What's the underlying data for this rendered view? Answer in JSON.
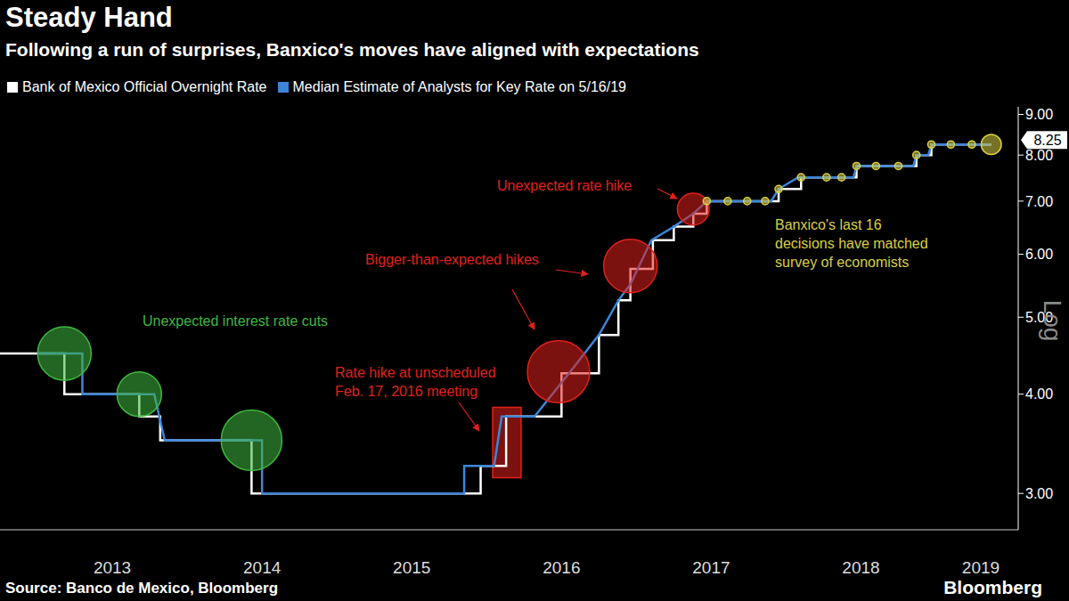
{
  "chart_data": {
    "type": "line",
    "title": "Steady Hand",
    "subtitle": "Following a run of surprises, Banxico's moves have aligned with expectations",
    "source": "Source: Banco de Mexico, Bloomberg",
    "brand": "Bloomberg",
    "ylabel": "Log",
    "log": "y",
    "grid": false,
    "xlim": [
      2012.75,
      2019.55
    ],
    "xticks": [
      {
        "value": 2013.5,
        "label": "2013"
      },
      {
        "value": 2014.5,
        "label": "2014"
      },
      {
        "value": 2015.5,
        "label": "2015"
      },
      {
        "value": 2016.5,
        "label": "2016"
      },
      {
        "value": 2017.5,
        "label": "2017"
      },
      {
        "value": 2018.5,
        "label": "2018"
      },
      {
        "value": 2019.3,
        "label": "2019"
      }
    ],
    "ylim": [
      2.7,
      9.2
    ],
    "yticks": [
      {
        "value": 3,
        "label": "3.00"
      },
      {
        "value": 4,
        "label": "4.00"
      },
      {
        "value": 5,
        "label": "5.00"
      },
      {
        "value": 6,
        "label": "6.00"
      },
      {
        "value": 7,
        "label": "7.00"
      },
      {
        "value": 8,
        "label": "8.00"
      },
      {
        "value": 9,
        "label": "9.00"
      }
    ],
    "series": [
      {
        "name": "Bank of Mexico Official Overnight Rate",
        "color": "#ffffff",
        "line_style": "step",
        "x": [
          2012.75,
          2013.18,
          2013.68,
          2013.82,
          2014.43,
          2015.96,
          2016.13,
          2016.5,
          2016.75,
          2016.88,
          2016.96,
          2017.11,
          2017.25,
          2017.38,
          2017.47,
          2017.95,
          2018.1,
          2018.47,
          2018.87,
          2018.97,
          2019.37
        ],
        "values": [
          4.5,
          4.0,
          3.75,
          3.5,
          3.0,
          3.25,
          3.75,
          4.25,
          4.75,
          5.25,
          5.75,
          6.25,
          6.5,
          6.75,
          7.0,
          7.25,
          7.5,
          7.75,
          8.0,
          8.25,
          8.25
        ]
      },
      {
        "name": "Median Estimate of Analysts for Key Rate on 5/16/19",
        "color": "#3d85d8",
        "line_style": "solid",
        "x": [
          2013.0,
          2013.3,
          2013.3,
          2013.78,
          2013.85,
          2014.5,
          2014.5,
          2015.85,
          2015.85,
          2016.05,
          2016.1,
          2016.32,
          2016.55,
          2016.75,
          2016.88,
          2016.96,
          2017.1,
          2017.25,
          2017.38,
          2017.47,
          2017.9,
          2017.95,
          2018.08,
          2018.45,
          2018.47,
          2018.85,
          2018.87,
          2018.95,
          2018.97,
          2019.37
        ],
        "values": [
          4.5,
          4.5,
          4.0,
          4.0,
          3.5,
          3.5,
          3.0,
          3.0,
          3.25,
          3.25,
          3.75,
          3.75,
          4.25,
          4.75,
          5.25,
          5.5,
          6.25,
          6.5,
          6.75,
          7.0,
          7.0,
          7.25,
          7.5,
          7.5,
          7.75,
          7.75,
          8.0,
          8.0,
          8.25,
          8.25
        ]
      }
    ],
    "annotations": [
      {
        "text": [
          "Unexpected interest rate cuts"
        ],
        "color": "#3fb83f",
        "marker": "circle",
        "x": [
          2013.18,
          2013.68,
          2014.43
        ],
        "values": [
          4.5,
          4.0,
          3.5
        ],
        "size": [
          71,
          49,
          91
        ]
      },
      {
        "text": [
          "Rate hike at unscheduled",
          "Feb. 17, 2016 meeting"
        ],
        "color": "#e0201b",
        "marker": "rect",
        "x": [
          2016.04,
          2016.23
        ],
        "values": [
          3.14,
          3.85
        ]
      },
      {
        "text": [
          "Bigger-than-expected hikes"
        ],
        "color": "#e0201b",
        "marker": "circle",
        "x": [
          2016.48,
          2016.96
        ],
        "values": [
          4.27,
          5.8
        ],
        "size": [
          96,
          71
        ]
      },
      {
        "text": [
          "Unexpected rate hike"
        ],
        "color": "#e0201b",
        "marker": "circle",
        "x": [
          2017.38
        ],
        "values": [
          6.84
        ],
        "size": [
          25
        ]
      },
      {
        "text": [
          "Banxico's last 16",
          "decisions have matched",
          "survey of economists"
        ],
        "color": "#d9cf45",
        "marker": "circle",
        "x": [
          2017.47,
          2017.61,
          2017.74,
          2017.86,
          2017.95,
          2018.1,
          2018.27,
          2018.37,
          2018.47,
          2018.6,
          2018.75,
          2018.87,
          2018.97,
          2019.1,
          2019.24,
          2019.37
        ],
        "values": [
          7.0,
          7.0,
          7.0,
          7.0,
          7.25,
          7.5,
          7.5,
          7.5,
          7.75,
          7.75,
          7.75,
          8.0,
          8.25,
          8.25,
          8.25,
          8.25
        ],
        "size": [
          1.3,
          1.3,
          1.3,
          1.3,
          1.3,
          1.3,
          1.3,
          1.3,
          1.3,
          1.3,
          1.3,
          1.3,
          1.3,
          1.3,
          1.3,
          10
        ]
      }
    ]
  }
}
